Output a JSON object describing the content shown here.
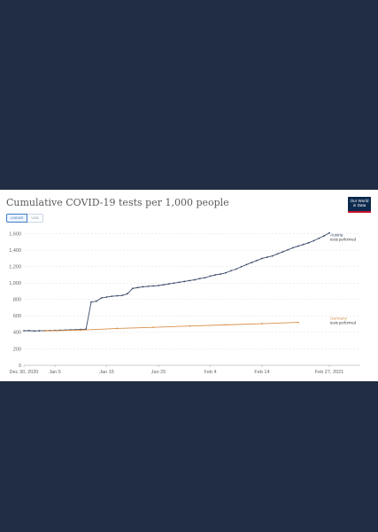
{
  "title": "Cumulative COVID-19 tests per 1,000 people",
  "logo": {
    "line1": "Our World",
    "line2": "in Data"
  },
  "scale_toggle": {
    "linear_label": "LINEAR",
    "log_label": "LOG",
    "selected": "LINEAR"
  },
  "colors": {
    "page_background": "#202d42",
    "austria": "#3b4a6b",
    "germany": "#d8904a",
    "grid": "#dddddd",
    "logo": "#0d2a4e"
  },
  "chart_data": {
    "type": "line",
    "title": "Cumulative COVID-19 tests per 1,000 people",
    "x_tick_labels": [
      "Dec 30, 2020",
      "Jan 5",
      "Jan 15",
      "Jan 25",
      "Feb 4",
      "Feb 14",
      "Feb 27, 2021"
    ],
    "y_ticks": [
      0,
      200,
      400,
      600,
      800,
      1000,
      1200,
      1400,
      1600
    ],
    "y_tick_labels": [
      "0",
      "200",
      "400",
      "600",
      "800",
      "1,000",
      "1,200",
      "1,400",
      "1,600"
    ],
    "xlim": [
      "2020-12-30",
      "2021-02-27"
    ],
    "ylim": [
      0,
      1650
    ],
    "grid": "horizontal dashed",
    "series": [
      {
        "name": "Austria",
        "label_lines": [
          "Austria",
          "tests performed"
        ],
        "x": [
          "2020-12-30",
          "2020-12-31",
          "2021-01-01",
          "2021-01-02",
          "2021-01-03",
          "2021-01-04",
          "2021-01-05",
          "2021-01-06",
          "2021-01-07",
          "2021-01-08",
          "2021-01-09",
          "2021-01-10",
          "2021-01-11",
          "2021-01-12",
          "2021-01-13",
          "2021-01-14",
          "2021-01-15",
          "2021-01-16",
          "2021-01-17",
          "2021-01-18",
          "2021-01-19",
          "2021-01-20",
          "2021-01-21",
          "2021-01-22",
          "2021-01-23",
          "2021-01-24",
          "2021-01-25",
          "2021-01-26",
          "2021-01-27",
          "2021-01-28",
          "2021-01-29",
          "2021-01-30",
          "2021-01-31",
          "2021-02-01",
          "2021-02-02",
          "2021-02-03",
          "2021-02-04",
          "2021-02-05",
          "2021-02-06",
          "2021-02-07",
          "2021-02-08",
          "2021-02-09",
          "2021-02-10",
          "2021-02-11",
          "2021-02-12",
          "2021-02-13",
          "2021-02-14",
          "2021-02-15",
          "2021-02-16",
          "2021-02-17",
          "2021-02-18",
          "2021-02-19",
          "2021-02-20",
          "2021-02-21",
          "2021-02-22",
          "2021-02-23",
          "2021-02-24",
          "2021-02-25",
          "2021-02-26",
          "2021-02-27"
        ],
        "values": [
          420,
          422,
          418,
          420,
          421,
          423,
          425,
          427,
          429,
          431,
          433,
          436,
          440,
          770,
          780,
          820,
          830,
          840,
          845,
          850,
          870,
          935,
          945,
          955,
          960,
          965,
          970,
          980,
          990,
          1000,
          1010,
          1020,
          1030,
          1040,
          1055,
          1065,
          1085,
          1100,
          1110,
          1125,
          1150,
          1170,
          1200,
          1225,
          1250,
          1275,
          1300,
          1315,
          1330,
          1355,
          1380,
          1405,
          1430,
          1450,
          1470,
          1490,
          1515,
          1545,
          1575,
          1610
        ]
      },
      {
        "name": "Germany",
        "label_lines": [
          "Germany",
          "tests performed"
        ],
        "x": [
          "2021-01-03",
          "2021-01-10",
          "2021-01-17",
          "2021-01-24",
          "2021-01-31",
          "2021-02-07",
          "2021-02-14",
          "2021-02-21"
        ],
        "values": [
          418,
          428,
          448,
          462,
          478,
          492,
          506,
          522
        ]
      }
    ]
  }
}
